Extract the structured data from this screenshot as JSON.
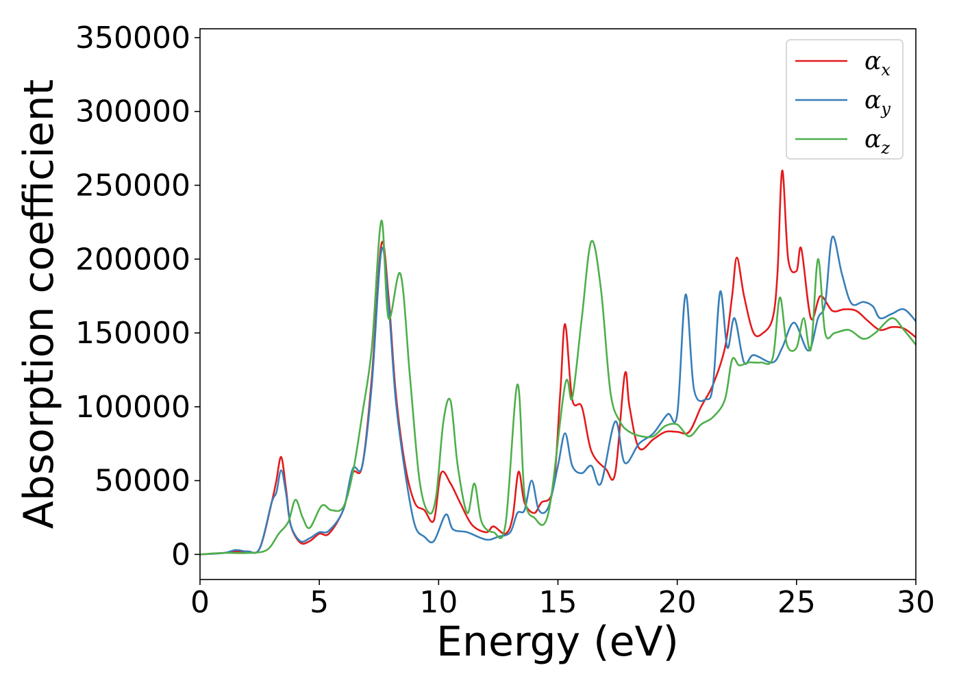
{
  "chart_data": {
    "type": "line",
    "xlabel": "Energy (eV)",
    "ylabel": "Absorption coefficient",
    "xlim": [
      0,
      30
    ],
    "ylim": [
      -17000,
      356000
    ],
    "xticks": [
      0,
      5,
      10,
      15,
      20,
      25,
      30
    ],
    "yticks": [
      0,
      50000,
      100000,
      150000,
      200000,
      250000,
      300000,
      350000
    ],
    "grid": false,
    "legend_position": "top-right",
    "series": [
      {
        "name": "α_x",
        "label_main": "α",
        "label_sub": "x",
        "color": "#e41a1c",
        "points": [
          [
            0,
            0
          ],
          [
            1,
            1000
          ],
          [
            1.5,
            2000
          ],
          [
            2,
            2000
          ],
          [
            2.5,
            4000
          ],
          [
            3,
            35000
          ],
          [
            3.2,
            50000
          ],
          [
            3.4,
            66000
          ],
          [
            3.6,
            45000
          ],
          [
            3.8,
            20000
          ],
          [
            4.2,
            8000
          ],
          [
            4.6,
            9000
          ],
          [
            5,
            14000
          ],
          [
            5.4,
            14000
          ],
          [
            6,
            30000
          ],
          [
            6.4,
            55000
          ],
          [
            6.8,
            60000
          ],
          [
            7.2,
            120000
          ],
          [
            7.6,
            210000
          ],
          [
            7.9,
            175000
          ],
          [
            8.2,
            110000
          ],
          [
            8.6,
            60000
          ],
          [
            9,
            35000
          ],
          [
            9.4,
            30000
          ],
          [
            9.8,
            23000
          ],
          [
            10.1,
            55000
          ],
          [
            10.5,
            48000
          ],
          [
            10.9,
            35000
          ],
          [
            11.4,
            20000
          ],
          [
            12,
            15000
          ],
          [
            12.3,
            19000
          ],
          [
            12.8,
            14000
          ],
          [
            13.1,
            25000
          ],
          [
            13.35,
            56000
          ],
          [
            13.6,
            35000
          ],
          [
            14,
            28000
          ],
          [
            14.3,
            35000
          ],
          [
            14.8,
            45000
          ],
          [
            15.1,
            110000
          ],
          [
            15.3,
            156000
          ],
          [
            15.6,
            105000
          ],
          [
            16,
            100000
          ],
          [
            16.4,
            70000
          ],
          [
            17,
            58000
          ],
          [
            17.4,
            55000
          ],
          [
            17.8,
            122000
          ],
          [
            18,
            100000
          ],
          [
            18.4,
            72000
          ],
          [
            19,
            78000
          ],
          [
            19.5,
            83000
          ],
          [
            20,
            83000
          ],
          [
            20.5,
            83000
          ],
          [
            21,
            100000
          ],
          [
            21.5,
            115000
          ],
          [
            22,
            140000
          ],
          [
            22.3,
            175000
          ],
          [
            22.5,
            201000
          ],
          [
            22.8,
            175000
          ],
          [
            23.2,
            150000
          ],
          [
            23.6,
            150000
          ],
          [
            24,
            160000
          ],
          [
            24.2,
            190000
          ],
          [
            24.4,
            260000
          ],
          [
            24.65,
            200000
          ],
          [
            25,
            192000
          ],
          [
            25.2,
            207000
          ],
          [
            25.6,
            160000
          ],
          [
            26,
            175000
          ],
          [
            26.5,
            165000
          ],
          [
            27,
            166000
          ],
          [
            27.5,
            165000
          ],
          [
            28,
            158000
          ],
          [
            28.5,
            152000
          ],
          [
            29,
            154000
          ],
          [
            29.5,
            153000
          ],
          [
            30,
            147000
          ]
        ]
      },
      {
        "name": "α_y",
        "label_main": "α",
        "label_sub": "y",
        "color": "#377eb8",
        "points": [
          [
            0,
            0
          ],
          [
            1,
            1000
          ],
          [
            1.5,
            3000
          ],
          [
            2,
            2000
          ],
          [
            2.5,
            4000
          ],
          [
            3,
            35000
          ],
          [
            3.2,
            42000
          ],
          [
            3.4,
            57000
          ],
          [
            3.6,
            42000
          ],
          [
            3.8,
            20000
          ],
          [
            4.2,
            9000
          ],
          [
            4.6,
            11000
          ],
          [
            5,
            15000
          ],
          [
            5.4,
            16000
          ],
          [
            6,
            30000
          ],
          [
            6.4,
            58000
          ],
          [
            6.8,
            60000
          ],
          [
            7.2,
            115000
          ],
          [
            7.6,
            206000
          ],
          [
            7.9,
            170000
          ],
          [
            8.2,
            105000
          ],
          [
            8.6,
            55000
          ],
          [
            9,
            20000
          ],
          [
            9.4,
            12000
          ],
          [
            9.8,
            9000
          ],
          [
            10.3,
            27000
          ],
          [
            10.6,
            17000
          ],
          [
            11.2,
            15000
          ],
          [
            12,
            10000
          ],
          [
            12.5,
            12000
          ],
          [
            13,
            15000
          ],
          [
            13.3,
            28000
          ],
          [
            13.6,
            30000
          ],
          [
            13.9,
            50000
          ],
          [
            14.2,
            30000
          ],
          [
            14.6,
            32000
          ],
          [
            15,
            60000
          ],
          [
            15.3,
            82000
          ],
          [
            15.6,
            60000
          ],
          [
            16,
            55000
          ],
          [
            16.4,
            60000
          ],
          [
            16.8,
            48000
          ],
          [
            17.4,
            90000
          ],
          [
            17.8,
            62000
          ],
          [
            18.4,
            75000
          ],
          [
            19,
            82000
          ],
          [
            19.6,
            95000
          ],
          [
            20,
            95000
          ],
          [
            20.35,
            176000
          ],
          [
            20.7,
            112000
          ],
          [
            21.2,
            105000
          ],
          [
            21.5,
            115000
          ],
          [
            21.8,
            178000
          ],
          [
            22.1,
            140000
          ],
          [
            22.4,
            160000
          ],
          [
            22.8,
            130000
          ],
          [
            23.2,
            135000
          ],
          [
            24,
            130000
          ],
          [
            24.4,
            140000
          ],
          [
            24.9,
            157000
          ],
          [
            25.5,
            138000
          ],
          [
            25.9,
            160000
          ],
          [
            26.2,
            170000
          ],
          [
            26.5,
            215000
          ],
          [
            26.9,
            190000
          ],
          [
            27.3,
            170000
          ],
          [
            27.8,
            171000
          ],
          [
            28.2,
            168000
          ],
          [
            28.5,
            160000
          ],
          [
            29,
            163000
          ],
          [
            29.5,
            166000
          ],
          [
            30,
            158000
          ]
        ]
      },
      {
        "name": "α_z",
        "label_main": "α",
        "label_sub": "z",
        "color": "#4daf4a",
        "points": [
          [
            0,
            0
          ],
          [
            1,
            1000
          ],
          [
            2,
            1000
          ],
          [
            2.8,
            3000
          ],
          [
            3.3,
            14000
          ],
          [
            3.7,
            22000
          ],
          [
            4,
            37000
          ],
          [
            4.3,
            25000
          ],
          [
            4.6,
            18000
          ],
          [
            5.1,
            33000
          ],
          [
            5.5,
            30000
          ],
          [
            6,
            32000
          ],
          [
            6.4,
            55000
          ],
          [
            6.8,
            95000
          ],
          [
            7.2,
            140000
          ],
          [
            7.6,
            226000
          ],
          [
            7.9,
            160000
          ],
          [
            8.4,
            190000
          ],
          [
            8.8,
            120000
          ],
          [
            9.2,
            50000
          ],
          [
            9.6,
            28000
          ],
          [
            9.9,
            40000
          ],
          [
            10.2,
            90000
          ],
          [
            10.5,
            104000
          ],
          [
            10.8,
            60000
          ],
          [
            11.2,
            28000
          ],
          [
            11.5,
            48000
          ],
          [
            11.8,
            22000
          ],
          [
            12.3,
            15000
          ],
          [
            12.8,
            20000
          ],
          [
            13.3,
            115000
          ],
          [
            13.6,
            40000
          ],
          [
            14,
            25000
          ],
          [
            14.6,
            28000
          ],
          [
            15.3,
            115000
          ],
          [
            15.6,
            106000
          ],
          [
            16,
            160000
          ],
          [
            16.4,
            212000
          ],
          [
            16.8,
            180000
          ],
          [
            17.2,
            110000
          ],
          [
            17.6,
            90000
          ],
          [
            18,
            83000
          ],
          [
            18.5,
            80000
          ],
          [
            19,
            80000
          ],
          [
            19.5,
            87000
          ],
          [
            20,
            88000
          ],
          [
            20.5,
            80000
          ],
          [
            21,
            88000
          ],
          [
            21.5,
            93000
          ],
          [
            22,
            105000
          ],
          [
            22.3,
            132000
          ],
          [
            22.6,
            128000
          ],
          [
            23,
            130000
          ],
          [
            23.5,
            130000
          ],
          [
            24,
            133000
          ],
          [
            24.3,
            174000
          ],
          [
            24.6,
            142000
          ],
          [
            25,
            140000
          ],
          [
            25.3,
            160000
          ],
          [
            25.6,
            139000
          ],
          [
            25.9,
            200000
          ],
          [
            26.2,
            150000
          ],
          [
            26.6,
            150000
          ],
          [
            27.2,
            152000
          ],
          [
            27.8,
            146000
          ],
          [
            28.3,
            150000
          ],
          [
            29,
            160000
          ],
          [
            29.5,
            152000
          ],
          [
            30,
            142000
          ]
        ]
      }
    ]
  }
}
